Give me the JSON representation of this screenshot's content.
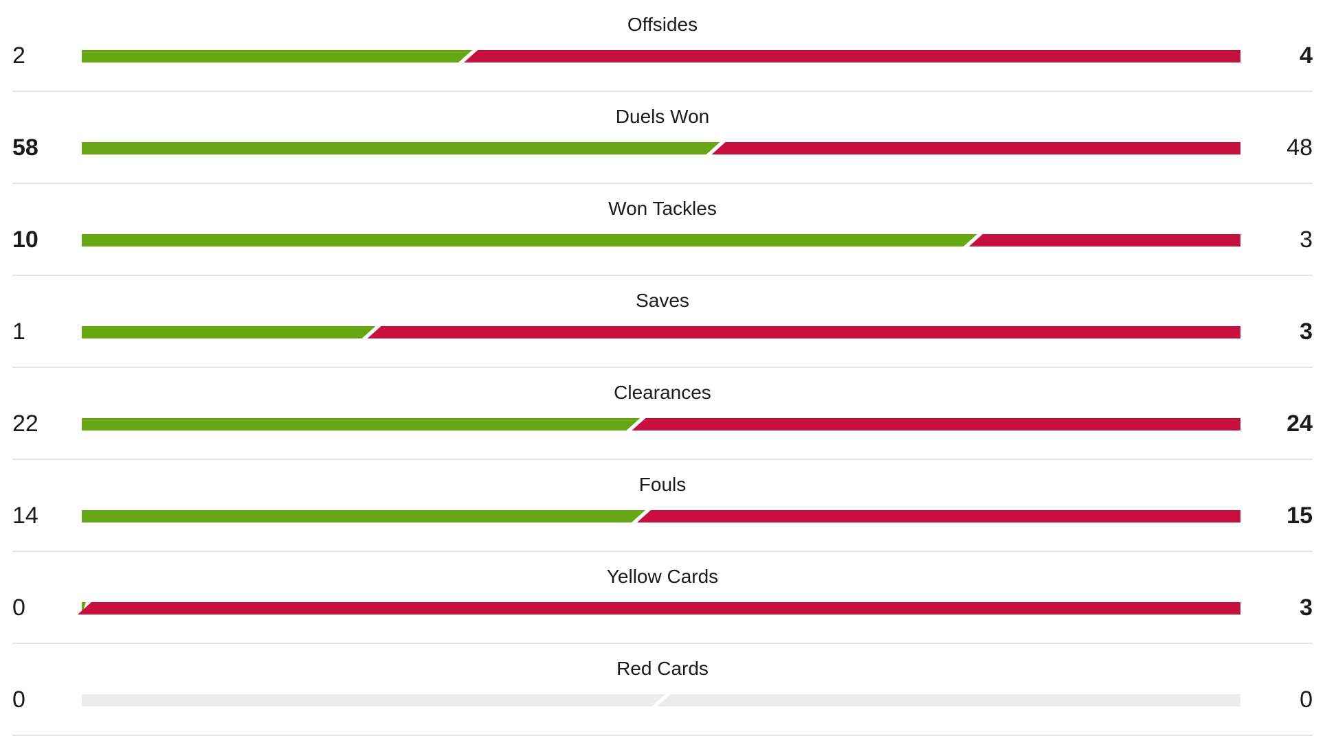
{
  "colors": {
    "home": "#68a714",
    "away": "#c8103e",
    "empty": "#ececec",
    "divider": "#e6e6e6"
  },
  "stats": [
    {
      "label": "Offsides",
      "home": "2",
      "away": "4"
    },
    {
      "label": "Duels Won",
      "home": "58",
      "away": "48"
    },
    {
      "label": "Won Tackles",
      "home": "10",
      "away": "3"
    },
    {
      "label": "Saves",
      "home": "1",
      "away": "3"
    },
    {
      "label": "Clearances",
      "home": "22",
      "away": "24"
    },
    {
      "label": "Fouls",
      "home": "14",
      "away": "15"
    },
    {
      "label": "Yellow Cards",
      "home": "0",
      "away": "3"
    },
    {
      "label": "Red Cards",
      "home": "0",
      "away": "0"
    }
  ]
}
